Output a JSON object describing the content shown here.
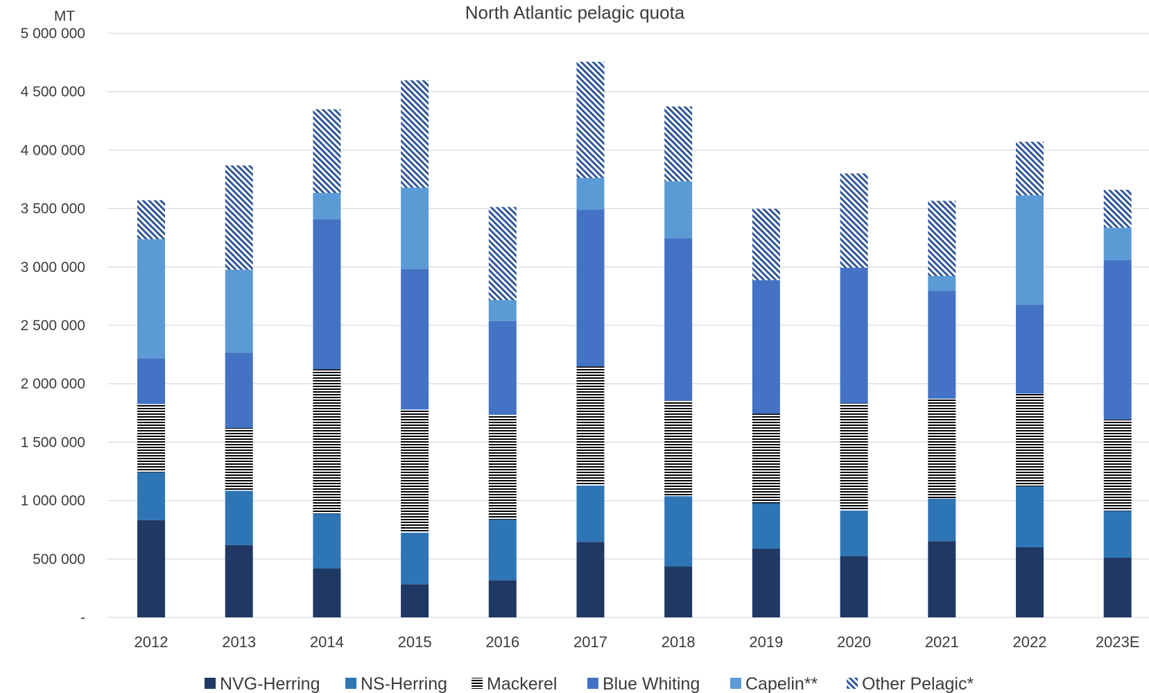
{
  "chart_data": {
    "type": "bar",
    "stacked": true,
    "title": "North Atlantic pelagic quota",
    "ylabel": "MT",
    "xlabel": "",
    "ylim": [
      0,
      5000000
    ],
    "yticks": [
      {
        "value": 0,
        "label": "-"
      },
      {
        "value": 500000,
        "label": "500 000"
      },
      {
        "value": 1000000,
        "label": "1 000 000"
      },
      {
        "value": 1500000,
        "label": "1 500 000"
      },
      {
        "value": 2000000,
        "label": "2 000 000"
      },
      {
        "value": 2500000,
        "label": "2 500 000"
      },
      {
        "value": 3000000,
        "label": "3 000 000"
      },
      {
        "value": 3500000,
        "label": "3 500 000"
      },
      {
        "value": 4000000,
        "label": "4 000 000"
      },
      {
        "value": 4500000,
        "label": "4 500 000"
      },
      {
        "value": 5000000,
        "label": "5 000 000"
      }
    ],
    "grid": true,
    "legend_position": "bottom",
    "categories": [
      "2012",
      "2013",
      "2014",
      "2015",
      "2016",
      "2017",
      "2018",
      "2019",
      "2020",
      "2021",
      "2022",
      "2023E"
    ],
    "series": [
      {
        "name": "NVG-Herring",
        "color": "#1f3864",
        "pattern": "solid",
        "values": [
          833000,
          619000,
          419000,
          283000,
          317000,
          646000,
          437000,
          588000,
          525000,
          652000,
          600000,
          511000
        ]
      },
      {
        "name": "NS-Herring",
        "color": "#2e75b6",
        "pattern": "solid",
        "values": [
          410000,
          465000,
          469000,
          442000,
          521000,
          482000,
          601000,
          389000,
          389000,
          365000,
          522000,
          400000
        ]
      },
      {
        "name": "Mackerel",
        "color": "#000000",
        "pattern": "horizontal",
        "values": [
          583000,
          537000,
          1236000,
          1054000,
          896000,
          1020000,
          816000,
          766000,
          919000,
          855000,
          794000,
          782000
        ]
      },
      {
        "name": "Blue Whiting",
        "color": "#4472c4",
        "pattern": "solid",
        "values": [
          391000,
          645000,
          1284000,
          1204000,
          803000,
          1343000,
          1391000,
          1144000,
          1160000,
          922000,
          759000,
          1366000
        ]
      },
      {
        "name": "Capelin**",
        "color": "#5b9bd5",
        "pattern": "solid",
        "values": [
          1021000,
          710000,
          226000,
          696000,
          180000,
          271000,
          488000,
          0,
          0,
          128000,
          938000,
          277000
        ]
      },
      {
        "name": "Other Pelagic*",
        "color": "#2f5597",
        "pattern": "diagonal",
        "values": [
          333000,
          893000,
          716000,
          919000,
          796000,
          994000,
          641000,
          611000,
          807000,
          644000,
          458000,
          324000
        ]
      }
    ]
  }
}
